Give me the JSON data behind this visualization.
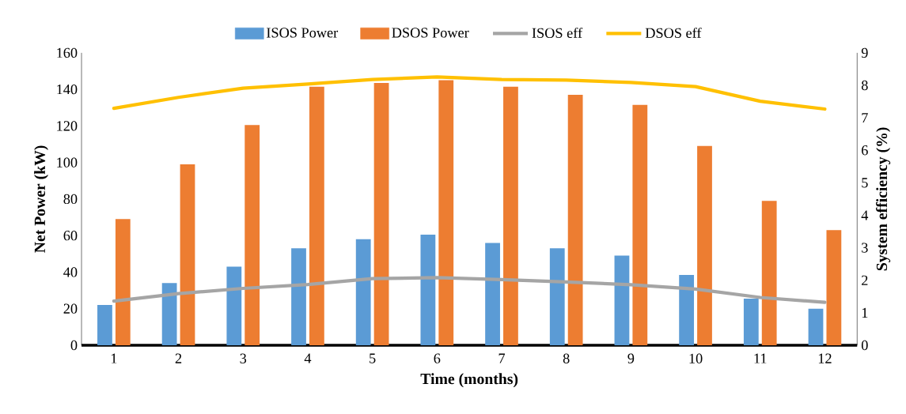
{
  "chart_data": {
    "type": "bar",
    "categories": [
      "1",
      "2",
      "3",
      "4",
      "5",
      "6",
      "7",
      "8",
      "9",
      "10",
      "11",
      "12"
    ],
    "series": [
      {
        "name": "ISOS Power",
        "color": "#5b9bd5",
        "values": [
          22,
          34,
          43,
          53,
          58,
          60.5,
          56,
          53,
          49,
          38.5,
          25.5,
          20
        ]
      },
      {
        "name": "DSOS Power",
        "color": "#ed7d31",
        "values": [
          69,
          99,
          120.5,
          141.5,
          143.5,
          145,
          141.5,
          137,
          131.5,
          109,
          79,
          63
        ]
      },
      {
        "name": "ISOS eff",
        "type": "line",
        "axis": "y2",
        "color": "#a5a5a5",
        "values": [
          1.36,
          1.59,
          1.75,
          1.87,
          2.05,
          2.08,
          2.02,
          1.95,
          1.86,
          1.73,
          1.47,
          1.32
        ]
      },
      {
        "name": "DSOS eff",
        "type": "line",
        "axis": "y2",
        "color": "#ffc000",
        "values": [
          7.29,
          7.63,
          7.91,
          8.04,
          8.18,
          8.26,
          8.18,
          8.16,
          8.09,
          7.96,
          7.51,
          7.27
        ]
      }
    ],
    "xlabel": "Time (months)",
    "ylabel": "Net Power (kW)",
    "y2label": "System efficiency (%)",
    "ylim": [
      0,
      160
    ],
    "yticks": [
      0,
      20,
      40,
      60,
      80,
      100,
      120,
      140,
      160
    ],
    "y2lim": [
      0,
      9
    ],
    "y2ticks": [
      0,
      1,
      2,
      3,
      4,
      5,
      6,
      7,
      8,
      9
    ],
    "legend": "top"
  }
}
